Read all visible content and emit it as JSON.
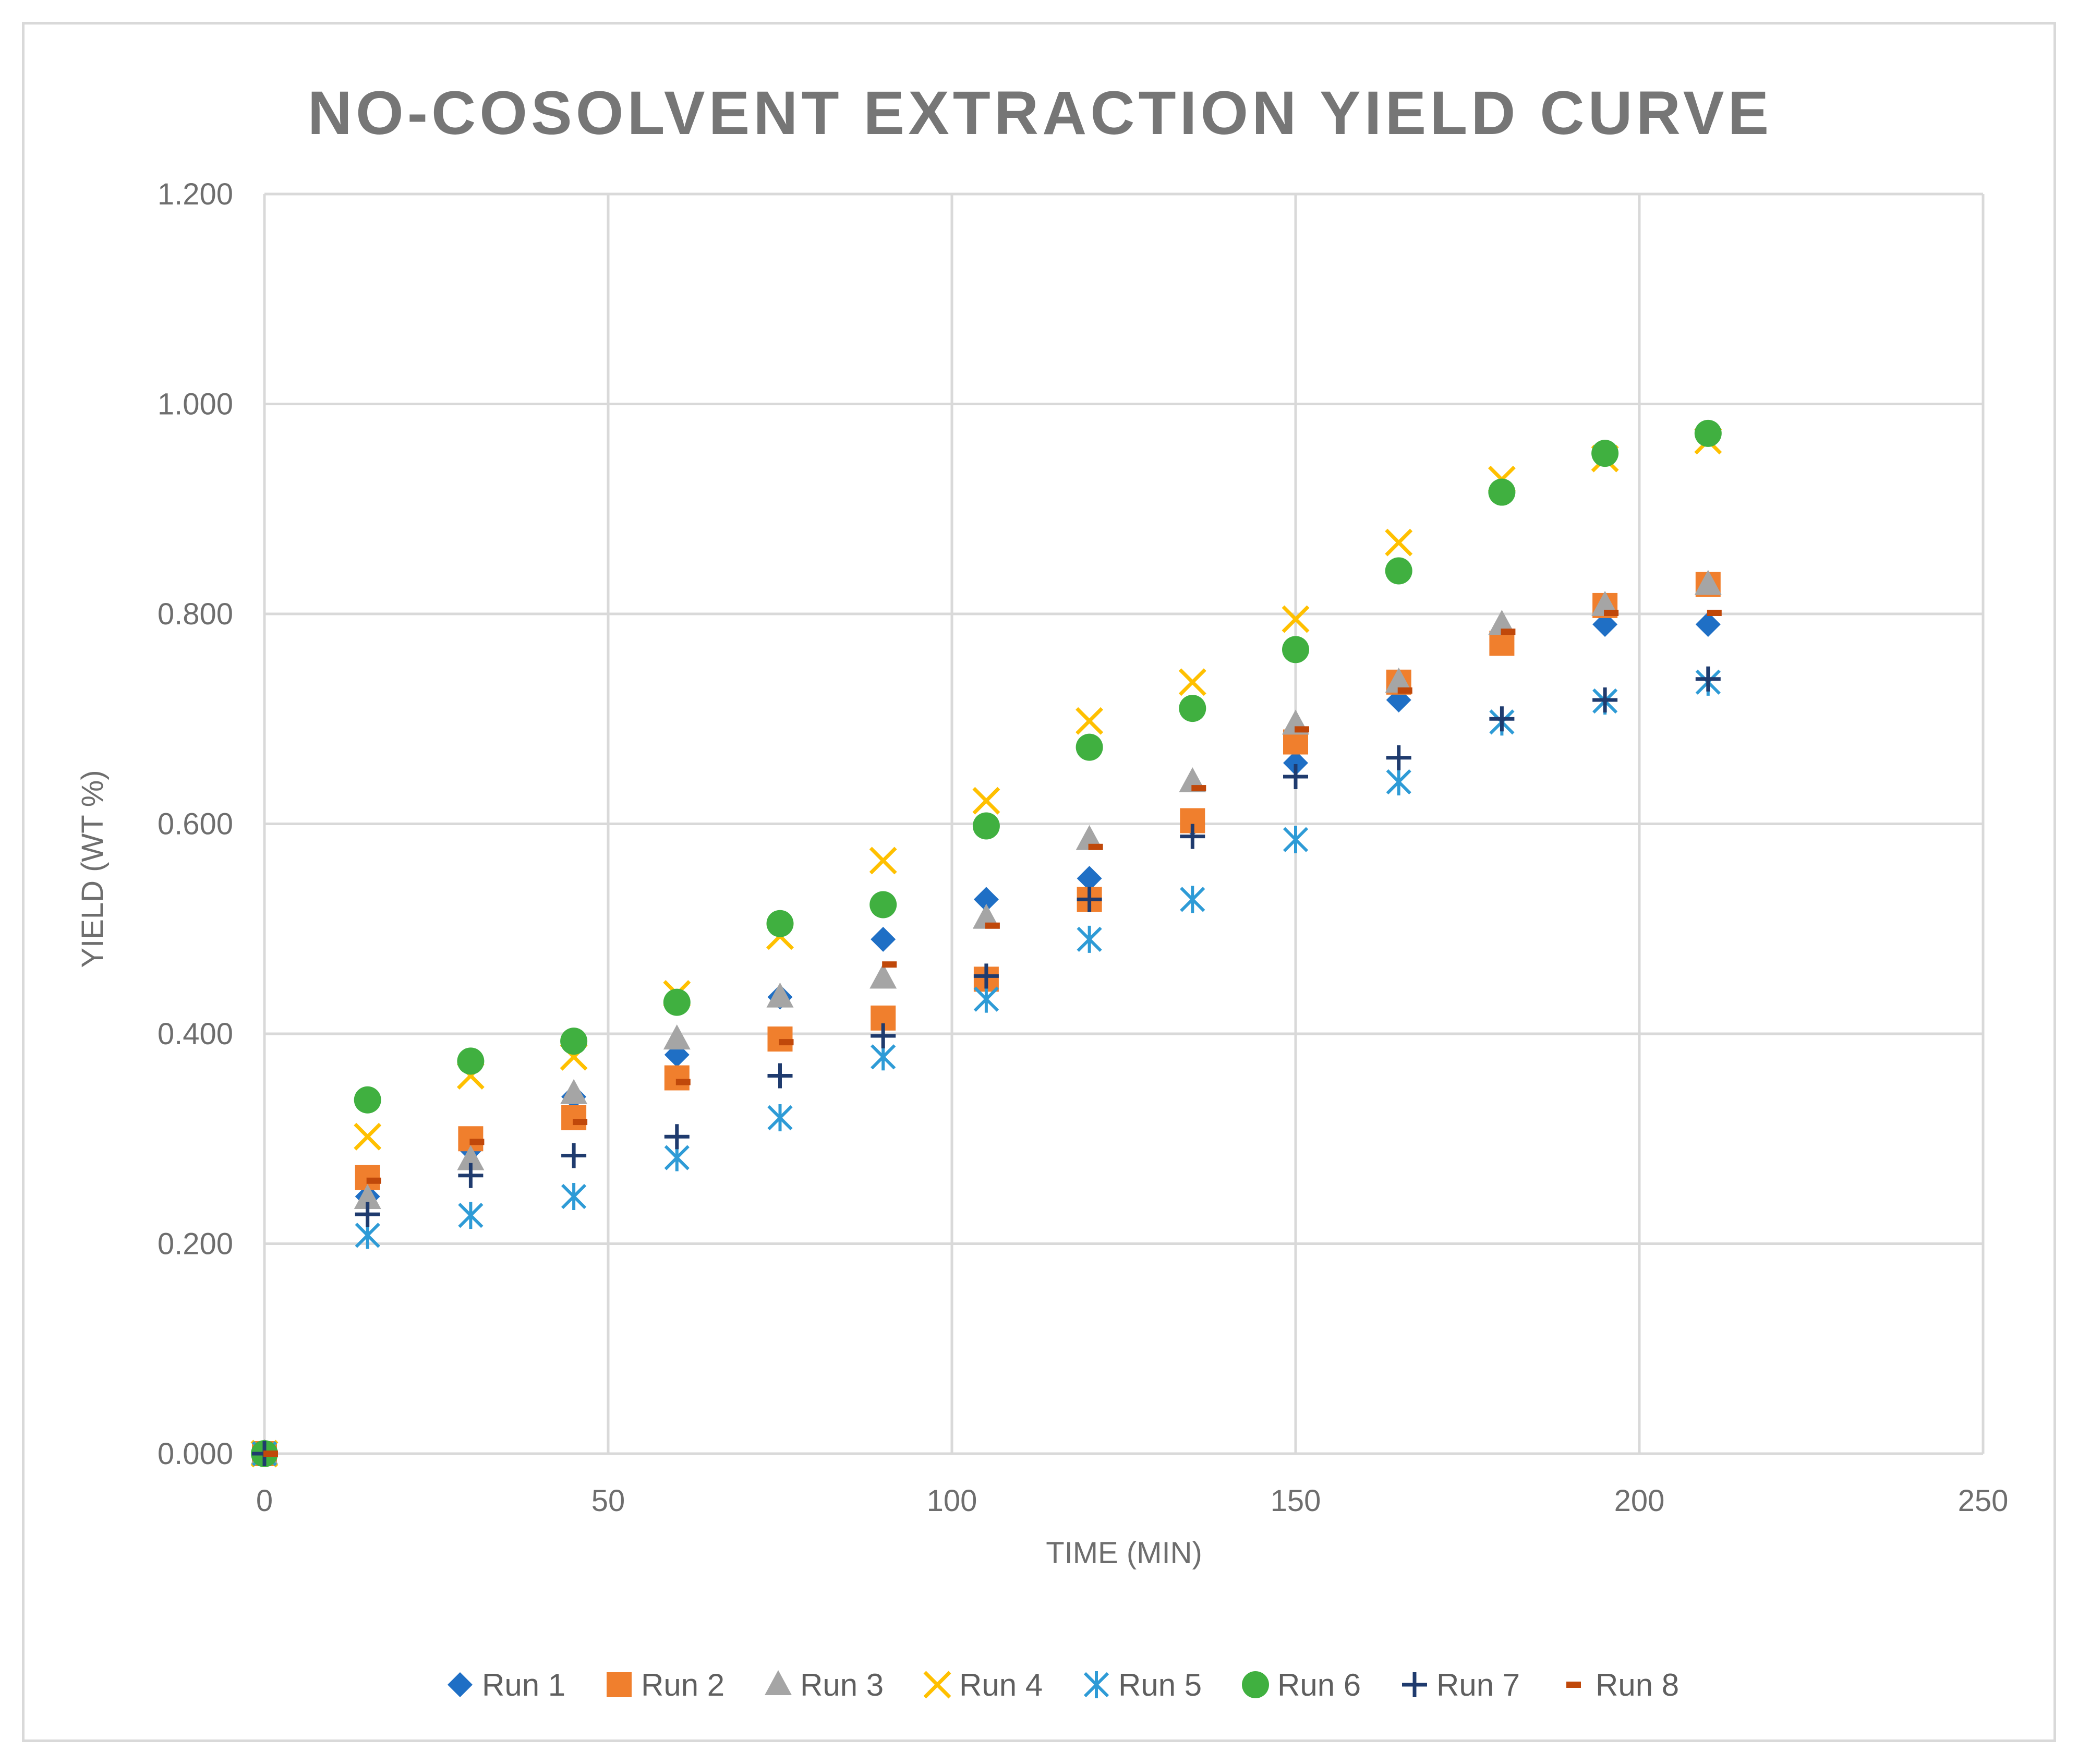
{
  "chart_data": {
    "type": "scatter",
    "title": "NO-COSOLVENT EXTRACTION YIELD CURVE",
    "xlabel": "TIME (MIN)",
    "ylabel": "YIELD (WT %)",
    "xlim": [
      0,
      250
    ],
    "ylim": [
      0,
      1.2
    ],
    "xticks": [
      "0",
      "50",
      "100",
      "150",
      "200",
      "250"
    ],
    "yticks": [
      "0.000",
      "0.200",
      "0.400",
      "0.600",
      "0.800",
      "1.000",
      "1.200"
    ],
    "grid": true,
    "legend_position": "bottom",
    "series": [
      {
        "name": "Run 1",
        "marker": "diamond",
        "color": "#1f6fc5",
        "x": [
          0,
          15,
          30,
          45,
          60,
          75,
          90,
          105,
          120,
          135,
          150,
          165,
          180,
          195,
          210
        ],
        "y": [
          0.0,
          0.245,
          0.29,
          0.34,
          0.38,
          0.435,
          0.49,
          0.528,
          0.548,
          0.6,
          0.658,
          0.718,
          0.775,
          0.79,
          0.79
        ]
      },
      {
        "name": "Run 2",
        "marker": "square",
        "color": "#f07f2d",
        "x": [
          0,
          15,
          30,
          45,
          60,
          75,
          90,
          105,
          120,
          135,
          150,
          165,
          180,
          195,
          210
        ],
        "y": [
          0.0,
          0.263,
          0.3,
          0.32,
          0.358,
          0.395,
          0.415,
          0.452,
          0.528,
          0.603,
          0.678,
          0.735,
          0.772,
          0.808,
          0.828
        ]
      },
      {
        "name": "Run 3",
        "marker": "triangle",
        "color": "#a5a5a5",
        "x": [
          0,
          15,
          30,
          45,
          60,
          75,
          90,
          105,
          120,
          135,
          150,
          165,
          180,
          195,
          210
        ],
        "y": [
          0.0,
          0.243,
          0.28,
          0.343,
          0.395,
          0.435,
          0.453,
          0.51,
          0.585,
          0.64,
          0.695,
          0.735,
          0.79,
          0.808,
          0.828
        ]
      },
      {
        "name": "Run 4",
        "marker": "x",
        "color": "#ffc000",
        "x": [
          0,
          15,
          30,
          45,
          60,
          75,
          90,
          105,
          120,
          135,
          150,
          165,
          180,
          195,
          210
        ],
        "y": [
          0.0,
          0.302,
          0.36,
          0.378,
          0.438,
          0.493,
          0.565,
          0.622,
          0.698,
          0.735,
          0.795,
          0.868,
          0.928,
          0.948,
          0.965
        ]
      },
      {
        "name": "Run 5",
        "marker": "asterisk",
        "color": "#2e9bd6",
        "x": [
          0,
          15,
          30,
          45,
          60,
          75,
          90,
          105,
          120,
          135,
          150,
          165,
          180,
          195,
          210
        ],
        "y": [
          0.0,
          0.208,
          0.227,
          0.245,
          0.282,
          0.32,
          0.378,
          0.433,
          0.49,
          0.528,
          0.585,
          0.64,
          0.697,
          0.717,
          0.735
        ]
      },
      {
        "name": "Run 6",
        "marker": "circle",
        "color": "#40b040",
        "x": [
          0,
          15,
          30,
          45,
          60,
          75,
          90,
          105,
          120,
          135,
          150,
          165,
          180,
          195,
          210
        ],
        "y": [
          0.0,
          0.337,
          0.374,
          0.393,
          0.43,
          0.505,
          0.523,
          0.598,
          0.673,
          0.71,
          0.766,
          0.841,
          0.916,
          0.953,
          0.972
        ]
      },
      {
        "name": "Run 7",
        "marker": "plus",
        "color": "#1f3b6e",
        "x": [
          0,
          15,
          30,
          45,
          60,
          75,
          90,
          105,
          120,
          135,
          150,
          165,
          180,
          195,
          210
        ],
        "y": [
          0.0,
          0.228,
          0.265,
          0.284,
          0.302,
          0.36,
          0.398,
          0.455,
          0.528,
          0.588,
          0.645,
          0.663,
          0.7,
          0.718,
          0.738
        ]
      },
      {
        "name": "Run 8",
        "marker": "dash",
        "color": "#c0480a",
        "x": [
          0,
          15,
          30,
          45,
          60,
          75,
          90,
          105,
          120,
          135,
          150,
          165,
          180,
          195,
          210
        ],
        "y": [
          0.0,
          0.26,
          0.297,
          0.316,
          0.354,
          0.392,
          0.466,
          0.503,
          0.578,
          0.634,
          0.69,
          0.727,
          0.783,
          0.801,
          0.801
        ]
      }
    ]
  }
}
